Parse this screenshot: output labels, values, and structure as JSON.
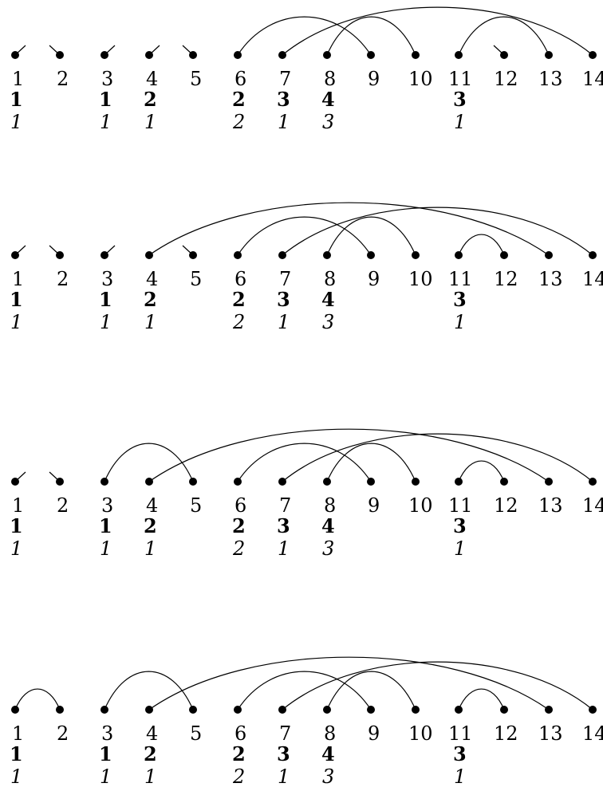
{
  "diagrams": [
    {
      "labels": [
        "1",
        "2",
        "3",
        "4",
        "5",
        "6",
        "7",
        "8",
        "9",
        "10",
        "11",
        "12",
        "13",
        "14"
      ],
      "bold_row": [
        "1",
        "",
        "1",
        "2",
        "",
        "2",
        "3",
        "4",
        "",
        "",
        "3",
        "",
        "",
        ""
      ],
      "italic_row": [
        "1",
        "",
        "1",
        "1",
        "",
        "2",
        "1",
        "3",
        "",
        "",
        "1",
        "",
        "",
        ""
      ],
      "arcs": [
        [
          6,
          9
        ],
        [
          7,
          14
        ],
        [
          8,
          10
        ],
        [
          11,
          13
        ]
      ],
      "open_ends": [
        [
          1,
          "right"
        ],
        [
          2,
          "left"
        ],
        [
          3,
          "right"
        ],
        [
          4,
          "right"
        ],
        [
          5,
          "left"
        ],
        [
          12,
          "left"
        ]
      ]
    },
    {
      "labels": [
        "1",
        "2",
        "3",
        "4",
        "5",
        "6",
        "7",
        "8",
        "9",
        "10",
        "11",
        "12",
        "13",
        "14"
      ],
      "bold_row": [
        "1",
        "",
        "1",
        "2",
        "",
        "2",
        "3",
        "4",
        "",
        "",
        "3",
        "",
        "",
        ""
      ],
      "italic_row": [
        "1",
        "",
        "1",
        "1",
        "",
        "2",
        "1",
        "3",
        "",
        "",
        "1",
        "",
        "",
        ""
      ],
      "arcs": [
        [
          4,
          13
        ],
        [
          6,
          9
        ],
        [
          7,
          14
        ],
        [
          8,
          10
        ],
        [
          11,
          12
        ]
      ],
      "open_ends": [
        [
          1,
          "right"
        ],
        [
          2,
          "left"
        ],
        [
          3,
          "right"
        ],
        [
          5,
          "left"
        ]
      ]
    },
    {
      "labels": [
        "1",
        "2",
        "3",
        "4",
        "5",
        "6",
        "7",
        "8",
        "9",
        "10",
        "11",
        "12",
        "13",
        "14"
      ],
      "bold_row": [
        "1",
        "",
        "1",
        "2",
        "",
        "2",
        "3",
        "4",
        "",
        "",
        "3",
        "",
        "",
        ""
      ],
      "italic_row": [
        "1",
        "",
        "1",
        "1",
        "",
        "2",
        "1",
        "3",
        "",
        "",
        "1",
        "",
        "",
        ""
      ],
      "arcs": [
        [
          3,
          5
        ],
        [
          4,
          13
        ],
        [
          6,
          9
        ],
        [
          7,
          14
        ],
        [
          8,
          10
        ],
        [
          11,
          12
        ]
      ],
      "open_ends": [
        [
          1,
          "right"
        ],
        [
          2,
          "left"
        ]
      ]
    },
    {
      "labels": [
        "1",
        "2",
        "3",
        "4",
        "5",
        "6",
        "7",
        "8",
        "9",
        "10",
        "11",
        "12",
        "13",
        "14"
      ],
      "bold_row": [
        "1",
        "",
        "1",
        "2",
        "",
        "2",
        "3",
        "4",
        "",
        "",
        "3",
        "",
        "",
        ""
      ],
      "italic_row": [
        "1",
        "",
        "1",
        "1",
        "",
        "2",
        "1",
        "3",
        "",
        "",
        "1",
        "",
        "",
        ""
      ],
      "arcs": [
        [
          1,
          2
        ],
        [
          3,
          5
        ],
        [
          4,
          13
        ],
        [
          6,
          9
        ],
        [
          7,
          14
        ],
        [
          8,
          10
        ],
        [
          11,
          12
        ]
      ],
      "open_ends": []
    }
  ]
}
